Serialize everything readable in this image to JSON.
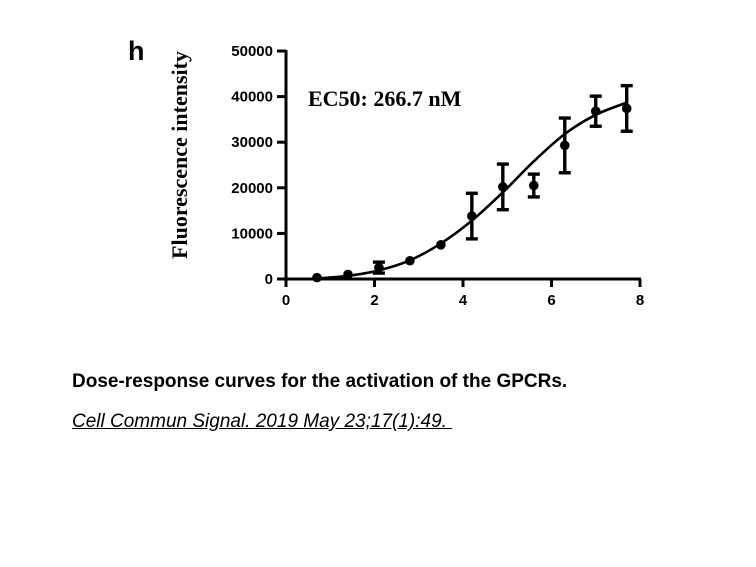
{
  "chart_data": {
    "type": "scatter",
    "panel_label": "h",
    "ylabel": "Fluorescence intensity",
    "annotation": "EC50: 266.7 nM",
    "xlim": [
      0,
      8
    ],
    "ylim": [
      0,
      50000
    ],
    "x_ticks": [
      "0",
      "2",
      "4",
      "6",
      "8"
    ],
    "y_ticks": [
      "0",
      "10000",
      "20000",
      "30000",
      "40000",
      "50000"
    ],
    "points": [
      {
        "x": 0.7,
        "y": 300,
        "err": 0
      },
      {
        "x": 1.4,
        "y": 1000,
        "err": 0
      },
      {
        "x": 2.1,
        "y": 2500,
        "err": 1200
      },
      {
        "x": 2.8,
        "y": 4000,
        "err": 0
      },
      {
        "x": 3.5,
        "y": 7500,
        "err": 0
      },
      {
        "x": 4.2,
        "y": 13800,
        "err": 5000
      },
      {
        "x": 4.9,
        "y": 20200,
        "err": 5000
      },
      {
        "x": 5.6,
        "y": 20500,
        "err": 2500
      },
      {
        "x": 6.3,
        "y": 29300,
        "err": 6000
      },
      {
        "x": 7.0,
        "y": 36800,
        "err": 3300
      },
      {
        "x": 7.7,
        "y": 37400,
        "err": 5000
      }
    ],
    "fit_curve": {
      "x": [
        0.7,
        1.4,
        2.1,
        2.8,
        3.5,
        4.2,
        4.9,
        5.6,
        6.3,
        7.0,
        7.7
      ],
      "y": [
        100,
        700,
        1900,
        4100,
        7800,
        12800,
        19000,
        25800,
        31800,
        36000,
        38700
      ]
    }
  },
  "caption": {
    "title": "Dose-response curves for the activation of the GPCRs.",
    "citation": "Cell Commun Signal. 2019 May 23;17(1):49. "
  }
}
